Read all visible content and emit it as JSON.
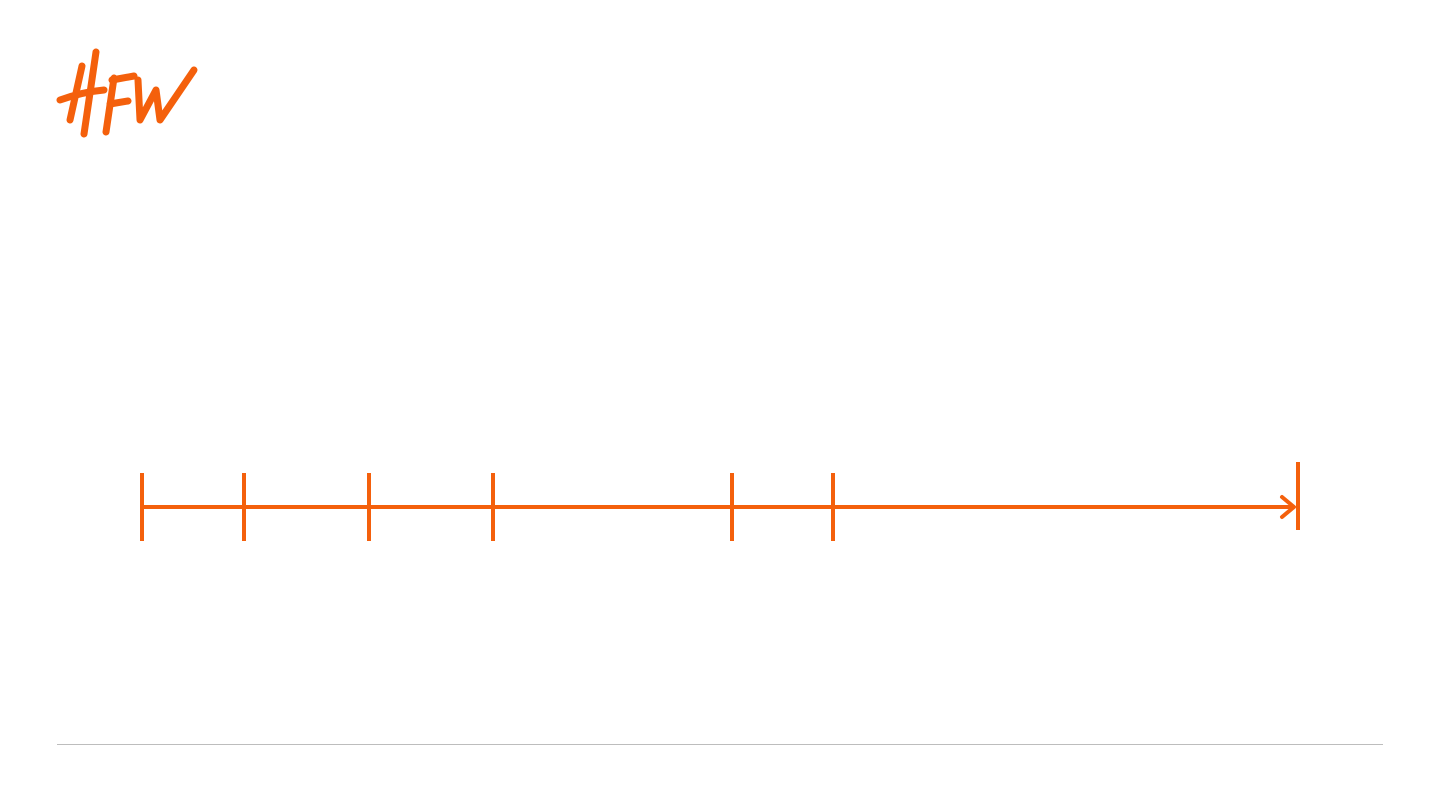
{
  "brand": {
    "logo_text": "HFW",
    "logo_color": "#f4600c"
  },
  "timeline": {
    "color": "#f4600c",
    "direction": "right",
    "marker_count": 7,
    "end_icon": "arrow-right-icon"
  },
  "footer": {
    "rule_color": "#bdbdbd"
  }
}
